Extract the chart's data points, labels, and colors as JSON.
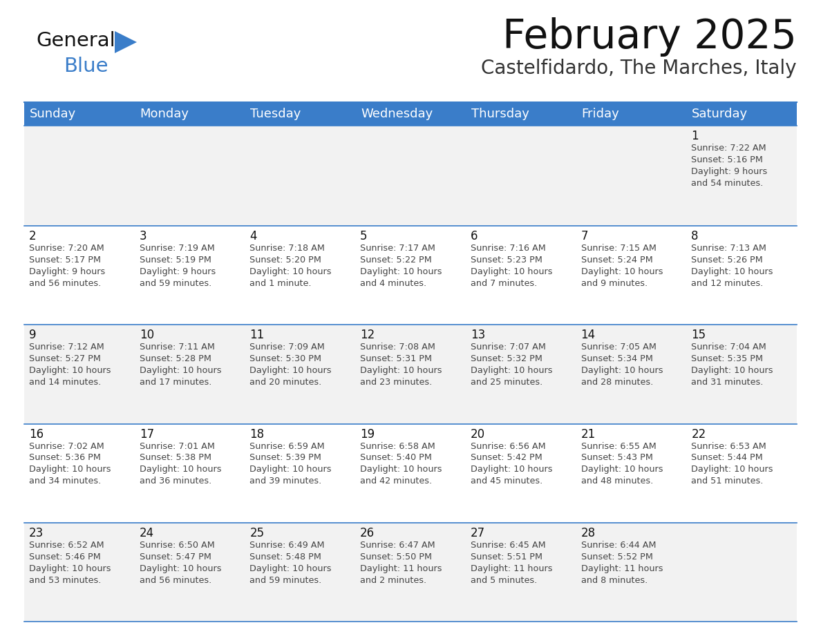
{
  "title": "February 2025",
  "subtitle": "Castelfidardo, The Marches, Italy",
  "header_bg": "#3A7DC9",
  "header_text_color": "#FFFFFF",
  "grid_line_color": "#3A7DC9",
  "text_color": "#444444",
  "day_number_color": "#111111",
  "logo_general_color": "#111111",
  "logo_blue_color": "#3A7DC9",
  "row_bg_light": "#F2F2F2",
  "row_bg_white": "#FFFFFF",
  "days_of_week": [
    "Sunday",
    "Monday",
    "Tuesday",
    "Wednesday",
    "Thursday",
    "Friday",
    "Saturday"
  ],
  "weeks": [
    [
      null,
      null,
      null,
      null,
      null,
      null,
      {
        "day": 1,
        "sunrise": "7:22 AM",
        "sunset": "5:16 PM",
        "daylight": "9 hours\nand 54 minutes."
      }
    ],
    [
      {
        "day": 2,
        "sunrise": "7:20 AM",
        "sunset": "5:17 PM",
        "daylight": "9 hours\nand 56 minutes."
      },
      {
        "day": 3,
        "sunrise": "7:19 AM",
        "sunset": "5:19 PM",
        "daylight": "9 hours\nand 59 minutes."
      },
      {
        "day": 4,
        "sunrise": "7:18 AM",
        "sunset": "5:20 PM",
        "daylight": "10 hours\nand 1 minute."
      },
      {
        "day": 5,
        "sunrise": "7:17 AM",
        "sunset": "5:22 PM",
        "daylight": "10 hours\nand 4 minutes."
      },
      {
        "day": 6,
        "sunrise": "7:16 AM",
        "sunset": "5:23 PM",
        "daylight": "10 hours\nand 7 minutes."
      },
      {
        "day": 7,
        "sunrise": "7:15 AM",
        "sunset": "5:24 PM",
        "daylight": "10 hours\nand 9 minutes."
      },
      {
        "day": 8,
        "sunrise": "7:13 AM",
        "sunset": "5:26 PM",
        "daylight": "10 hours\nand 12 minutes."
      }
    ],
    [
      {
        "day": 9,
        "sunrise": "7:12 AM",
        "sunset": "5:27 PM",
        "daylight": "10 hours\nand 14 minutes."
      },
      {
        "day": 10,
        "sunrise": "7:11 AM",
        "sunset": "5:28 PM",
        "daylight": "10 hours\nand 17 minutes."
      },
      {
        "day": 11,
        "sunrise": "7:09 AM",
        "sunset": "5:30 PM",
        "daylight": "10 hours\nand 20 minutes."
      },
      {
        "day": 12,
        "sunrise": "7:08 AM",
        "sunset": "5:31 PM",
        "daylight": "10 hours\nand 23 minutes."
      },
      {
        "day": 13,
        "sunrise": "7:07 AM",
        "sunset": "5:32 PM",
        "daylight": "10 hours\nand 25 minutes."
      },
      {
        "day": 14,
        "sunrise": "7:05 AM",
        "sunset": "5:34 PM",
        "daylight": "10 hours\nand 28 minutes."
      },
      {
        "day": 15,
        "sunrise": "7:04 AM",
        "sunset": "5:35 PM",
        "daylight": "10 hours\nand 31 minutes."
      }
    ],
    [
      {
        "day": 16,
        "sunrise": "7:02 AM",
        "sunset": "5:36 PM",
        "daylight": "10 hours\nand 34 minutes."
      },
      {
        "day": 17,
        "sunrise": "7:01 AM",
        "sunset": "5:38 PM",
        "daylight": "10 hours\nand 36 minutes."
      },
      {
        "day": 18,
        "sunrise": "6:59 AM",
        "sunset": "5:39 PM",
        "daylight": "10 hours\nand 39 minutes."
      },
      {
        "day": 19,
        "sunrise": "6:58 AM",
        "sunset": "5:40 PM",
        "daylight": "10 hours\nand 42 minutes."
      },
      {
        "day": 20,
        "sunrise": "6:56 AM",
        "sunset": "5:42 PM",
        "daylight": "10 hours\nand 45 minutes."
      },
      {
        "day": 21,
        "sunrise": "6:55 AM",
        "sunset": "5:43 PM",
        "daylight": "10 hours\nand 48 minutes."
      },
      {
        "day": 22,
        "sunrise": "6:53 AM",
        "sunset": "5:44 PM",
        "daylight": "10 hours\nand 51 minutes."
      }
    ],
    [
      {
        "day": 23,
        "sunrise": "6:52 AM",
        "sunset": "5:46 PM",
        "daylight": "10 hours\nand 53 minutes."
      },
      {
        "day": 24,
        "sunrise": "6:50 AM",
        "sunset": "5:47 PM",
        "daylight": "10 hours\nand 56 minutes."
      },
      {
        "day": 25,
        "sunrise": "6:49 AM",
        "sunset": "5:48 PM",
        "daylight": "10 hours\nand 59 minutes."
      },
      {
        "day": 26,
        "sunrise": "6:47 AM",
        "sunset": "5:50 PM",
        "daylight": "11 hours\nand 2 minutes."
      },
      {
        "day": 27,
        "sunrise": "6:45 AM",
        "sunset": "5:51 PM",
        "daylight": "11 hours\nand 5 minutes."
      },
      {
        "day": 28,
        "sunrise": "6:44 AM",
        "sunset": "5:52 PM",
        "daylight": "11 hours\nand 8 minutes."
      },
      null
    ]
  ]
}
